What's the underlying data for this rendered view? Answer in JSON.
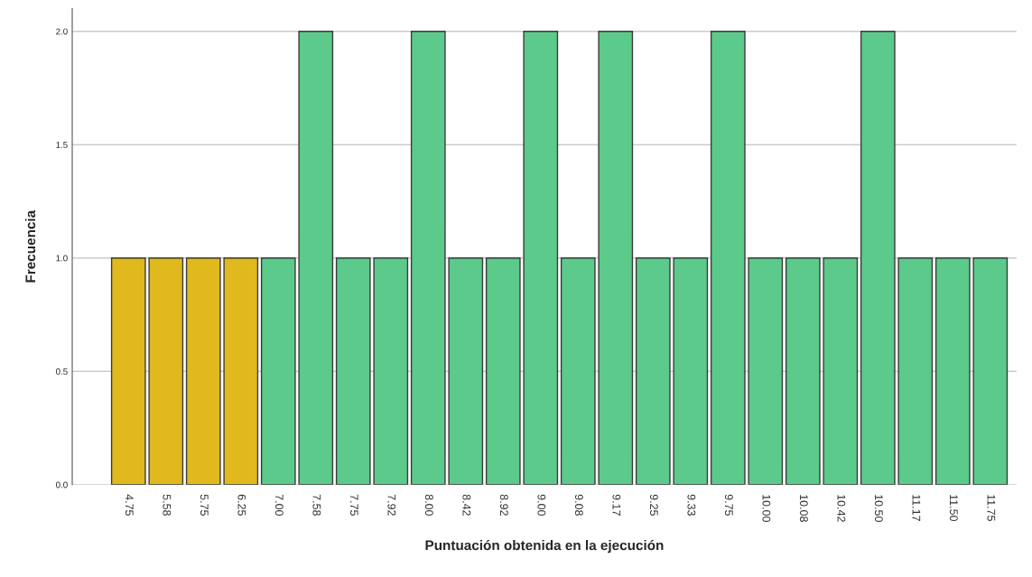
{
  "chart_data": {
    "type": "bar",
    "xlabel": "Puntuación obtenida en la ejecución",
    "ylabel": "Frecuencia",
    "categories": [
      "4.75",
      "5.58",
      "5.75",
      "6.25",
      "7.00",
      "7.58",
      "7.75",
      "7.92",
      "8.00",
      "8.42",
      "8.92",
      "9.00",
      "9.08",
      "9.17",
      "9.25",
      "9.33",
      "9.75",
      "10.00",
      "10.08",
      "10.42",
      "10.50",
      "11.17",
      "11.50",
      "11.75"
    ],
    "values": [
      1,
      1,
      1,
      1,
      1,
      2,
      1,
      1,
      2,
      1,
      1,
      2,
      1,
      2,
      1,
      1,
      2,
      1,
      1,
      1,
      2,
      1,
      1,
      1
    ],
    "colors": [
      "#e0b91e",
      "#e0b91e",
      "#e0b91e",
      "#e0b91e",
      "#5bca8a",
      "#5bca8a",
      "#5bca8a",
      "#5bca8a",
      "#5bca8a",
      "#5bca8a",
      "#5bca8a",
      "#5bca8a",
      "#5bca8a",
      "#5bca8a",
      "#5bca8a",
      "#5bca8a",
      "#5bca8a",
      "#5bca8a",
      "#5bca8a",
      "#5bca8a",
      "#5bca8a",
      "#5bca8a",
      "#5bca8a",
      "#5bca8a"
    ],
    "ylim": [
      0,
      2.1
    ],
    "yticks": [
      {
        "value": 0,
        "label": "0.0"
      },
      {
        "value": 0.5,
        "label": "0.5"
      },
      {
        "value": 1,
        "label": "1.0"
      },
      {
        "value": 1.5,
        "label": "1.5"
      },
      {
        "value": 2,
        "label": "2.0"
      }
    ],
    "grid": "y",
    "legend": false
  }
}
